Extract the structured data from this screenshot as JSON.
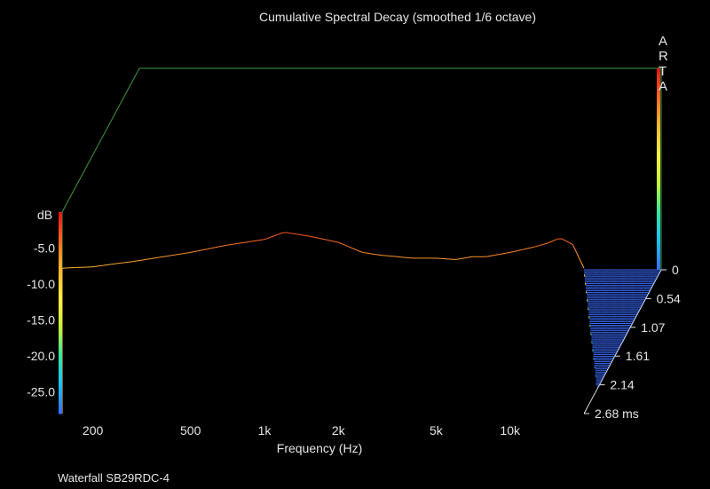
{
  "chart_data": {
    "type": "waterfall",
    "title": "Cumulative Spectral Decay (smoothed 1/6 octave)",
    "xlabel": "Frequency (Hz)",
    "x_ticks": [
      "200",
      "500",
      "1k",
      "2k",
      "5k",
      "10k"
    ],
    "x_tick_values": [
      200,
      500,
      1000,
      2000,
      5000,
      10000
    ],
    "xlim": [
      150,
      20000
    ],
    "x_scale": "log",
    "zlabel": "dB",
    "z_ticks": [
      "-5.0",
      "-10.0",
      "-15.0",
      "-20.0",
      "-25.0"
    ],
    "zlim": [
      -28,
      0
    ],
    "y_ticks": [
      "0",
      "0.54",
      "1.07",
      "1.61",
      "2.14",
      "2.68 ms"
    ],
    "ylim_ms": [
      0,
      2.68
    ],
    "brand": [
      "A",
      "R",
      "T",
      "A"
    ],
    "footer": "Waterfall SB29RDC-4",
    "colormap": [
      "#3b6cff",
      "#19c2ff",
      "#33e6a0",
      "#c6f23a",
      "#fff040",
      "#ffb830",
      "#ff6a22",
      "#e01414"
    ],
    "frame_color": "#3f9a3f",
    "grid": false,
    "first_slice_db": {
      "freq_hz": [
        150,
        200,
        300,
        500,
        700,
        1000,
        1200,
        1500,
        2000,
        2500,
        3000,
        4000,
        5000,
        6000,
        7000,
        8000,
        10000,
        12000,
        14000,
        16000,
        18000,
        20000
      ],
      "level_db": [
        -7.8,
        -7.6,
        -6.8,
        -5.6,
        -4.6,
        -3.8,
        -2.8,
        -3.3,
        -4.2,
        -5.6,
        -6.0,
        -6.4,
        -6.4,
        -6.6,
        -6.2,
        -6.2,
        -5.6,
        -5.0,
        -4.4,
        -3.6,
        -4.5,
        -7.8
      ]
    },
    "decay_db_per_slice": {
      "freq_hz": [
        150,
        200,
        300,
        500,
        700,
        1000,
        1200,
        1500,
        2000,
        2500,
        3000,
        3500,
        4000,
        5000,
        6000,
        7000,
        8000,
        10000,
        12000,
        14000,
        16000,
        18000,
        20000
      ],
      "db_per_slice": [
        0.85,
        0.9,
        1.0,
        0.85,
        0.62,
        0.55,
        0.7,
        0.9,
        1.1,
        1.25,
        1.6,
        2.3,
        3.0,
        2.8,
        2.7,
        2.8,
        3.0,
        2.3,
        2.7,
        2.3,
        1.9,
        1.5,
        1.4
      ]
    },
    "slice_count": 84
  }
}
